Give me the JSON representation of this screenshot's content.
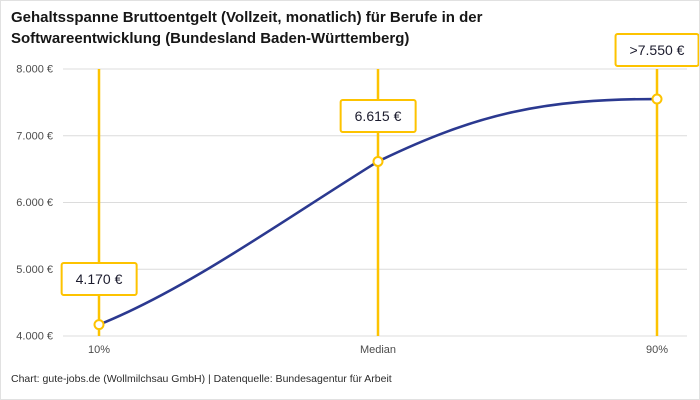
{
  "header": {
    "title_line1": "Gehaltsspanne Bruttoentgelt (Vollzeit, monatlich) für Berufe in der",
    "title_line2": "Softwareentwicklung (Bundesland Baden-Württemberg)"
  },
  "footer": {
    "source": "Chart: gute-jobs.de (Wollmilchsau GmbH) | Datenquelle: Bundesagentur für Arbeit"
  },
  "chart_data": {
    "type": "line",
    "title": "Gehaltsspanne Bruttoentgelt (Vollzeit, monatlich) für Berufe in der Softwareentwicklung (Bundesland Baden-Württemberg)",
    "categories": [
      "10%",
      "Median",
      "90%"
    ],
    "values": [
      4170,
      6615,
      7550
    ],
    "point_labels": [
      "4.170 €",
      "6.615 €",
      ">7.550 €"
    ],
    "ylim": [
      4000,
      8000
    ],
    "ytick_step": 1000,
    "ytick_labels": [
      "4.000 €",
      "5.000 €",
      "6.000 €",
      "7.000 €",
      "8.000 €"
    ],
    "xlabel": "",
    "ylabel": "",
    "grid": "horizontal",
    "legend": "none",
    "source": "Chart: gute-jobs.de (Wollmilchsau GmbH) | Datenquelle: Bundesagentur für Arbeit",
    "colors": {
      "line": "#2b3990",
      "marker_line": "#fdc300",
      "callout_border": "#fdc300",
      "callout_text": "#1c1c2e",
      "grid": "#dcdcdc",
      "axis_text": "#4c4c4c"
    }
  }
}
